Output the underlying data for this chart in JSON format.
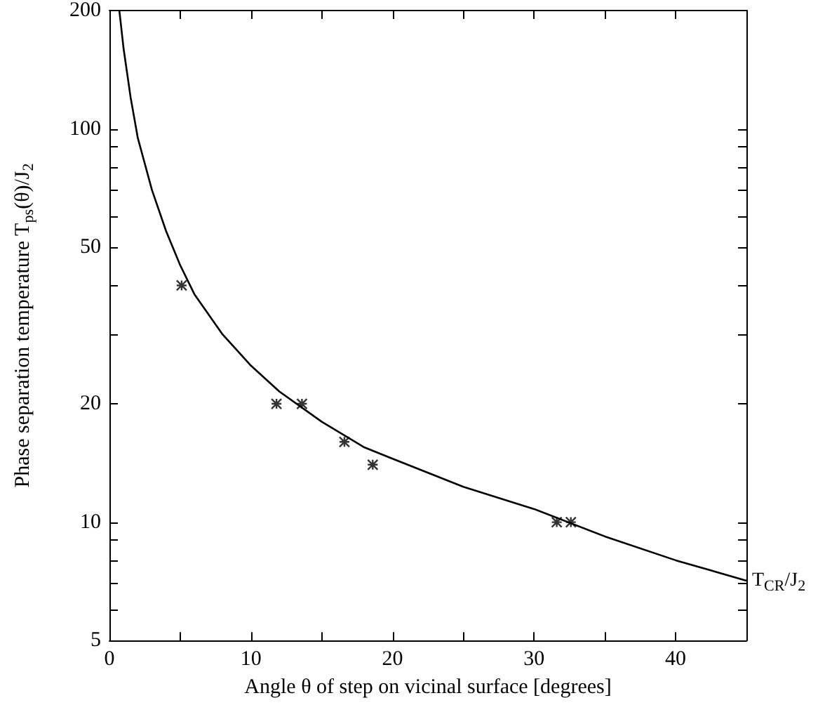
{
  "chart_data": {
    "type": "line",
    "xlabel": "Angle θ of step on vicinal surface [degrees]",
    "ylabel": "Phase separation temperature T$_{ps}$(θ)/J$_{2}$",
    "log": "y",
    "xlim": [
      0,
      45
    ],
    "xticks": [
      0,
      {
        "value": 5,
        "label": null
      },
      10,
      {
        "value": 15,
        "label": null
      },
      20,
      {
        "value": 25,
        "label": null
      },
      30,
      {
        "value": 35,
        "label": null
      },
      40,
      {
        "value": 45,
        "label": null
      }
    ],
    "ylim": [
      5,
      200
    ],
    "yticks": [
      5,
      {
        "value": 6,
        "label": null
      },
      {
        "value": 7,
        "label": null
      },
      {
        "value": 8,
        "label": null
      },
      {
        "value": 9,
        "label": null
      },
      10,
      20,
      {
        "value": 30,
        "label": null
      },
      {
        "value": 40,
        "label": null
      },
      50,
      {
        "value": 60,
        "label": null
      },
      {
        "value": 70,
        "label": null
      },
      {
        "value": 80,
        "label": null
      },
      {
        "value": 90,
        "label": null
      },
      100,
      200
    ],
    "grid": false,
    "series": [
      {
        "color": "#000000",
        "marker": "none",
        "line_style": "solid",
        "x": [
          0.7,
          1,
          1.5,
          2,
          3,
          4,
          5,
          6,
          8,
          10,
          12,
          15,
          18,
          20,
          25,
          30,
          35,
          40,
          45
        ],
        "values": [
          200,
          160,
          120,
          95,
          70,
          55,
          45,
          38,
          30,
          25,
          21.5,
          18,
          15.5,
          14.5,
          12.3,
          10.8,
          9.2,
          8.0,
          7.1
        ]
      },
      {
        "type": "scatter",
        "color": "#000000",
        "marker": "cross",
        "x": [
          5.1,
          11.8,
          13.6,
          16.6,
          18.6,
          31.6,
          32.6
        ],
        "values": [
          40,
          20,
          20,
          16,
          14,
          10,
          10
        ]
      }
    ],
    "annotations": [
      {
        "text": "T$_{CR}$/J$_{2}$",
        "x": 45,
        "y": 7.1
      }
    ]
  }
}
